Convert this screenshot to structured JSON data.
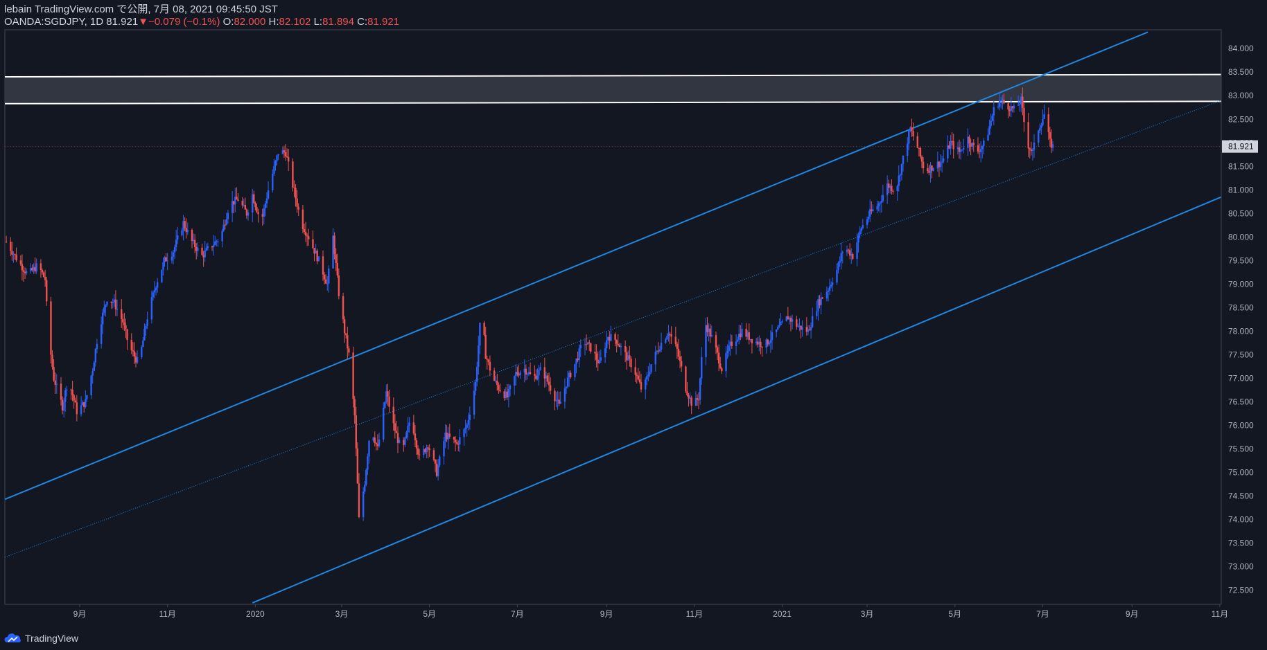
{
  "header": {
    "publish": "lebain TradingView.com で公開, 7月 08, 2021 09:45:50 JST",
    "symbol": "OANDA:SGDJPY, 1D",
    "last": "81.921",
    "change": "−0.079 (−0.1%)",
    "o_label": "O:",
    "o": "82.000",
    "h_label": "H:",
    "h": "82.102",
    "l_label": "L:",
    "l": "81.894",
    "c_label": "C:",
    "c": "81.921"
  },
  "watermark": {
    "text": "TradingView",
    "icon": "tradingview-cloud-icon"
  },
  "colors": {
    "background": "#131722",
    "up": "#2962ff",
    "down": "#ef5350",
    "channel": "#1e88e5",
    "zone": "#363a45",
    "zone_border": "#ffffff"
  },
  "chart_data": {
    "type": "candlestick",
    "symbol": "OANDA:SGDJPY",
    "interval": "1D",
    "ylim": [
      72.2,
      84.4
    ],
    "y_ticks": [
      72.5,
      73,
      73.5,
      74,
      74.5,
      75,
      75.5,
      76,
      76.5,
      77,
      77.5,
      78,
      78.5,
      79,
      79.5,
      80,
      80.5,
      81,
      81.5,
      82,
      82.5,
      83,
      83.5,
      84
    ],
    "y_tick_labels": [
      "72.500",
      "73.000",
      "73.500",
      "74.000",
      "74.500",
      "75.000",
      "75.500",
      "76.000",
      "76.500",
      "77.000",
      "77.500",
      "78.000",
      "78.500",
      "79.000",
      "79.500",
      "80.000",
      "80.500",
      "81.000",
      "81.500",
      "82.000",
      "82.500",
      "83.000",
      "83.500",
      "84.000"
    ],
    "x_range": [
      "2019-07-11",
      "2021-11-02"
    ],
    "x_ticks": [
      {
        "date": "2019-09-01",
        "label": "9月"
      },
      {
        "date": "2019-11-01",
        "label": "11月"
      },
      {
        "date": "2020-01-01",
        "label": "2020"
      },
      {
        "date": "2020-03-01",
        "label": "3月"
      },
      {
        "date": "2020-05-01",
        "label": "5月"
      },
      {
        "date": "2020-07-01",
        "label": "7月"
      },
      {
        "date": "2020-09-01",
        "label": "9月"
      },
      {
        "date": "2020-11-01",
        "label": "11月"
      },
      {
        "date": "2021-01-01",
        "label": "2021"
      },
      {
        "date": "2021-03-01",
        "label": "3月"
      },
      {
        "date": "2021-05-01",
        "label": "5月"
      },
      {
        "date": "2021-07-01",
        "label": "7月"
      },
      {
        "date": "2021-09-01",
        "label": "9月"
      },
      {
        "date": "2021-11-01",
        "label": "11月"
      }
    ],
    "last_price_label": "81.921",
    "close_path": [
      [
        "2019-07-12",
        79.9
      ],
      [
        "2019-07-20",
        79.5
      ],
      [
        "2019-07-27",
        79.2
      ],
      [
        "2019-08-03",
        79.4
      ],
      [
        "2019-08-08",
        79.1
      ],
      [
        "2019-08-10",
        78.0
      ],
      [
        "2019-08-14",
        77.0
      ],
      [
        "2019-08-20",
        76.4
      ],
      [
        "2019-08-24",
        77.0
      ],
      [
        "2019-08-30",
        76.3
      ],
      [
        "2019-09-05",
        76.5
      ],
      [
        "2019-09-10",
        77.2
      ],
      [
        "2019-09-14",
        78.0
      ],
      [
        "2019-09-20",
        78.7
      ],
      [
        "2019-09-25",
        78.6
      ],
      [
        "2019-10-01",
        78.2
      ],
      [
        "2019-10-05",
        77.7
      ],
      [
        "2019-10-12",
        77.3
      ],
      [
        "2019-10-18",
        78.3
      ],
      [
        "2019-10-24",
        79.0
      ],
      [
        "2019-10-30",
        79.5
      ],
      [
        "2019-11-05",
        79.7
      ],
      [
        "2019-11-12",
        80.3
      ],
      [
        "2019-11-18",
        79.9
      ],
      [
        "2019-11-25",
        79.6
      ],
      [
        "2019-12-01",
        79.8
      ],
      [
        "2019-12-08",
        80.0
      ],
      [
        "2019-12-14",
        80.7
      ],
      [
        "2019-12-20",
        80.8
      ],
      [
        "2019-12-26",
        80.5
      ],
      [
        "2019-12-30",
        80.9
      ],
      [
        "2020-01-05",
        80.3
      ],
      [
        "2020-01-10",
        81.0
      ],
      [
        "2020-01-17",
        81.8
      ],
      [
        "2020-01-22",
        81.8
      ],
      [
        "2020-01-27",
        81.1
      ],
      [
        "2020-02-02",
        80.3
      ],
      [
        "2020-02-07",
        80.0
      ],
      [
        "2020-02-14",
        79.5
      ],
      [
        "2020-02-20",
        79.0
      ],
      [
        "2020-02-24",
        80.0
      ],
      [
        "2020-02-28",
        78.8
      ],
      [
        "2020-03-03",
        78.0
      ],
      [
        "2020-03-06",
        77.5
      ],
      [
        "2020-03-10",
        76.2
      ],
      [
        "2020-03-13",
        74.0
      ],
      [
        "2020-03-17",
        74.8
      ],
      [
        "2020-03-21",
        76.0
      ],
      [
        "2020-03-26",
        75.5
      ],
      [
        "2020-04-01",
        76.7
      ],
      [
        "2020-04-06",
        76.0
      ],
      [
        "2020-04-12",
        75.4
      ],
      [
        "2020-04-18",
        76.2
      ],
      [
        "2020-04-24",
        75.3
      ],
      [
        "2020-04-30",
        75.6
      ],
      [
        "2020-05-06",
        75.0
      ],
      [
        "2020-05-12",
        75.8
      ],
      [
        "2020-05-20",
        75.6
      ],
      [
        "2020-05-27",
        76.0
      ],
      [
        "2020-06-02",
        76.9
      ],
      [
        "2020-06-06",
        78.5
      ],
      [
        "2020-06-09",
        77.5
      ],
      [
        "2020-06-14",
        77.0
      ],
      [
        "2020-06-18",
        76.8
      ],
      [
        "2020-06-24",
        76.6
      ],
      [
        "2020-06-30",
        77.1
      ],
      [
        "2020-07-06",
        77.2
      ],
      [
        "2020-07-12",
        77.0
      ],
      [
        "2020-07-18",
        77.2
      ],
      [
        "2020-07-24",
        76.8
      ],
      [
        "2020-07-30",
        76.4
      ],
      [
        "2020-08-04",
        76.9
      ],
      [
        "2020-08-10",
        77.3
      ],
      [
        "2020-08-16",
        77.8
      ],
      [
        "2020-08-22",
        77.6
      ],
      [
        "2020-08-27",
        77.3
      ],
      [
        "2020-09-02",
        77.9
      ],
      [
        "2020-09-08",
        77.8
      ],
      [
        "2020-09-14",
        77.5
      ],
      [
        "2020-09-20",
        77.2
      ],
      [
        "2020-09-26",
        76.7
      ],
      [
        "2020-10-02",
        77.3
      ],
      [
        "2020-10-08",
        77.7
      ],
      [
        "2020-10-14",
        78.0
      ],
      [
        "2020-10-20",
        77.6
      ],
      [
        "2020-10-26",
        76.8
      ],
      [
        "2020-10-31",
        76.4
      ],
      [
        "2020-11-04",
        76.6
      ],
      [
        "2020-11-08",
        78.2
      ],
      [
        "2020-11-14",
        77.8
      ],
      [
        "2020-11-20",
        77.2
      ],
      [
        "2020-11-26",
        77.7
      ],
      [
        "2020-12-04",
        78.0
      ],
      [
        "2020-12-12",
        77.8
      ],
      [
        "2020-12-20",
        77.7
      ],
      [
        "2020-12-28",
        78.0
      ],
      [
        "2021-01-05",
        78.3
      ],
      [
        "2021-01-12",
        78.1
      ],
      [
        "2021-01-19",
        78.0
      ],
      [
        "2021-01-26",
        78.6
      ],
      [
        "2021-02-02",
        78.9
      ],
      [
        "2021-02-08",
        79.3
      ],
      [
        "2021-02-13",
        79.8
      ],
      [
        "2021-02-19",
        79.6
      ],
      [
        "2021-02-25",
        80.2
      ],
      [
        "2021-03-03",
        80.5
      ],
      [
        "2021-03-09",
        80.7
      ],
      [
        "2021-03-15",
        81.1
      ],
      [
        "2021-03-21",
        81.0
      ],
      [
        "2021-03-27",
        81.8
      ],
      [
        "2021-03-31",
        82.3
      ],
      [
        "2021-04-05",
        81.9
      ],
      [
        "2021-04-10",
        81.4
      ],
      [
        "2021-04-16",
        81.5
      ],
      [
        "2021-04-22",
        81.6
      ],
      [
        "2021-04-28",
        82.0
      ],
      [
        "2021-05-04",
        81.8
      ],
      [
        "2021-05-10",
        82.1
      ],
      [
        "2021-05-16",
        81.8
      ],
      [
        "2021-05-22",
        82.0
      ],
      [
        "2021-05-28",
        82.7
      ],
      [
        "2021-06-01",
        82.9
      ],
      [
        "2021-06-06",
        82.8
      ],
      [
        "2021-06-11",
        82.7
      ],
      [
        "2021-06-16",
        82.9
      ],
      [
        "2021-06-20",
        82.0
      ],
      [
        "2021-06-24",
        81.8
      ],
      [
        "2021-06-28",
        82.3
      ],
      [
        "2021-07-02",
        82.6
      ],
      [
        "2021-07-06",
        82.0
      ],
      [
        "2021-07-08",
        81.921
      ]
    ],
    "drawings": {
      "channel_upper": [
        [
          "2019-07-11",
          74.43
        ],
        [
          "2021-09-12",
          84.35
        ]
      ],
      "channel_lower": [
        [
          "2019-12-30",
          72.23
        ],
        [
          "2021-11-02",
          80.85
        ]
      ],
      "channel_mid_dotted": [
        [
          "2019-07-11",
          73.2
        ],
        [
          "2021-11-02",
          82.9
        ]
      ],
      "resistance_zone": {
        "top": [
          [
            "2019-07-11",
            83.4
          ],
          [
            "2021-11-02",
            83.45
          ]
        ],
        "bottom": [
          [
            "2019-07-11",
            82.83
          ],
          [
            "2021-11-02",
            82.88
          ]
        ]
      }
    }
  }
}
